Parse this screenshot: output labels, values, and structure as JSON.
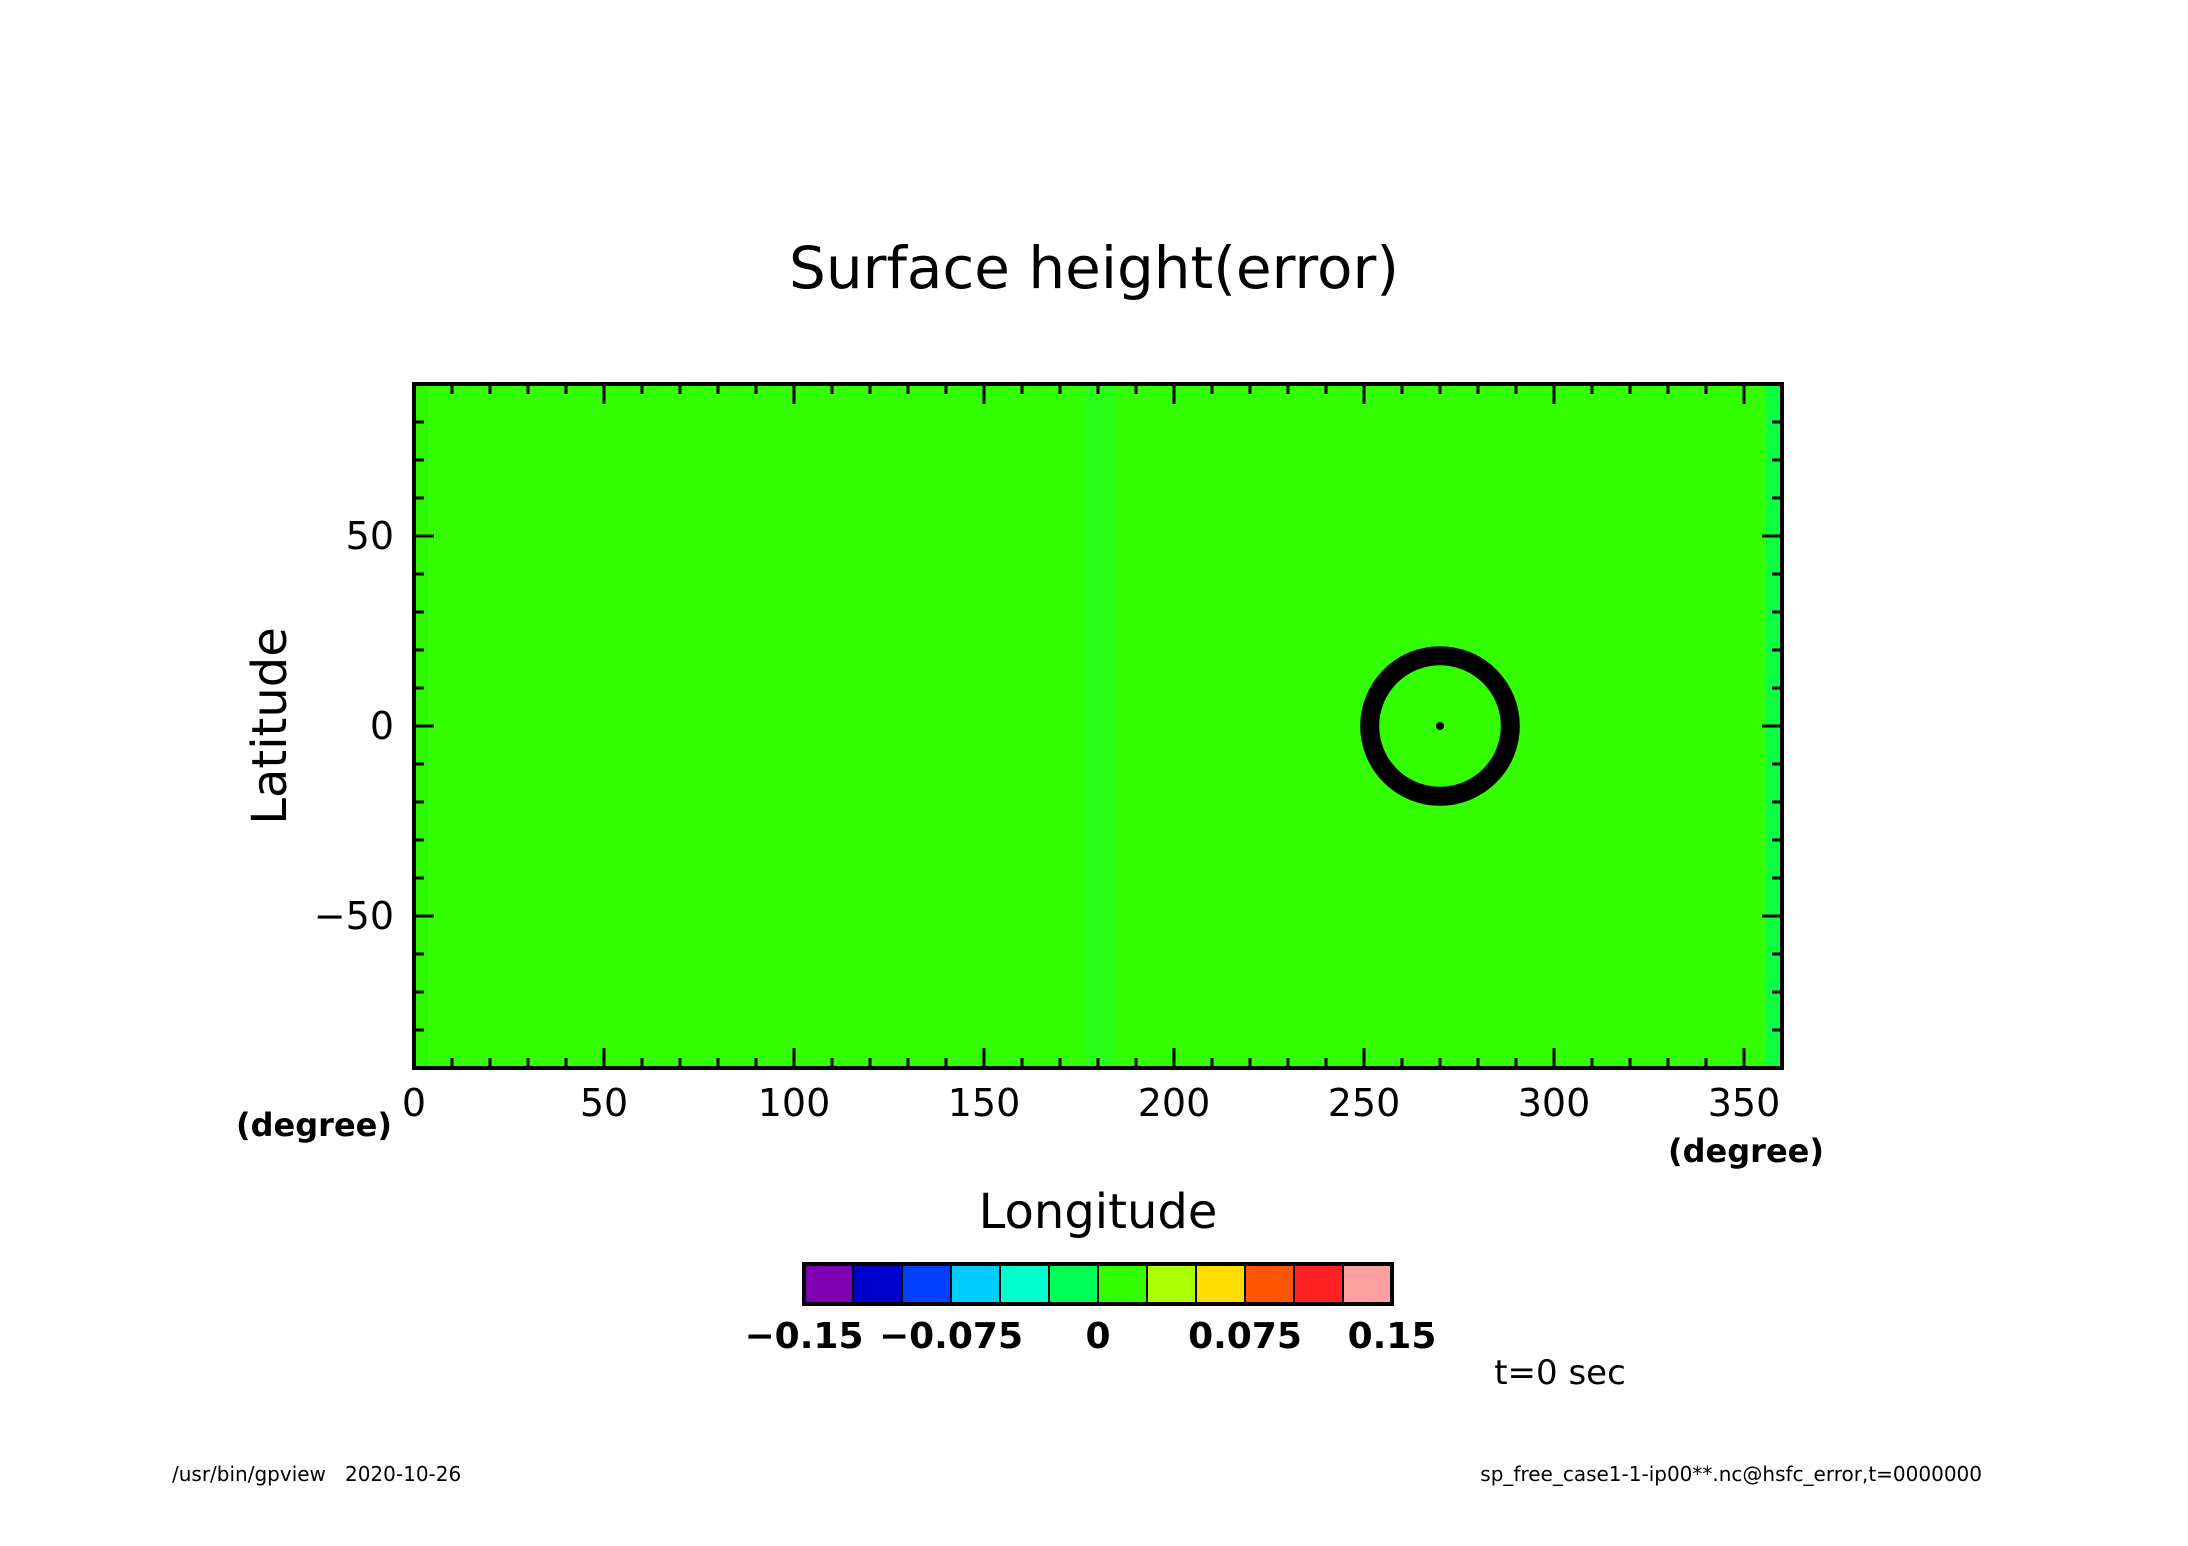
{
  "chart_data": {
    "type": "heatmap",
    "title": "Surface height(error)",
    "xlabel": "Longitude",
    "ylabel": "Latitude",
    "x_unit": "(degree)",
    "y_unit": "(degree)",
    "xlim": [
      0,
      360
    ],
    "ylim": [
      -90,
      90
    ],
    "x_ticks": [
      "0",
      "50",
      "100",
      "150",
      "200",
      "250",
      "300",
      "350"
    ],
    "x_tick_values": [
      0,
      50,
      100,
      150,
      200,
      250,
      300,
      350
    ],
    "y_ticks": [
      "50",
      "0",
      "−50"
    ],
    "y_tick_values": [
      50,
      0,
      -50
    ],
    "background_color": "#33ff00",
    "field_value": 0,
    "feature": {
      "type": "ring",
      "center_lon": 270,
      "center_lat": 0,
      "inner_radius_deg": 16,
      "outer_radius_deg": 21,
      "color": "#000000"
    },
    "colorbar": {
      "colors": [
        "#7f00b2",
        "#0000cc",
        "#0040ff",
        "#00ccff",
        "#00ffcc",
        "#00ff55",
        "#33ff00",
        "#aaff00",
        "#ffdd00",
        "#ff5500",
        "#ff2222",
        "#ffa0a0"
      ],
      "tick_labels": [
        "−0.15",
        "−0.075",
        "0",
        "0.075",
        "0.15"
      ],
      "tick_values": [
        -0.15,
        -0.075,
        0,
        0.075,
        0.15
      ],
      "range": [
        -0.15,
        0.15
      ]
    },
    "time_label": "t=0 sec"
  },
  "footer": {
    "left": "/usr/bin/gpview   2020-10-26",
    "right": "sp_free_case1-1-ip00**.nc@hsfc_error,t=0000000"
  }
}
